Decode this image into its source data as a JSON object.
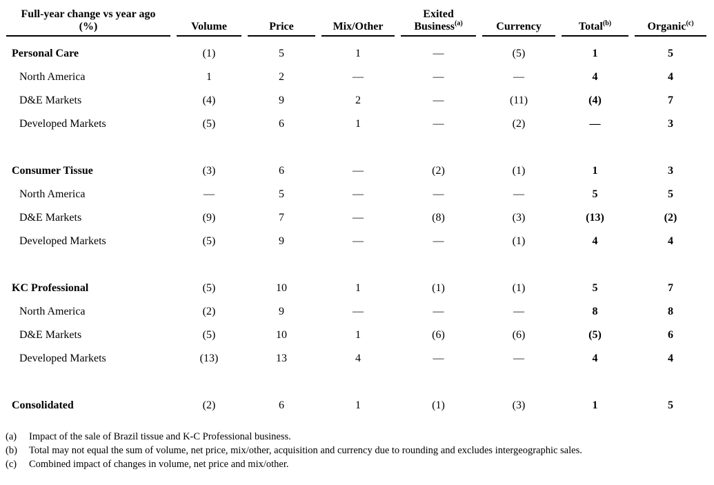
{
  "header": {
    "row_label_line1": "Full-year change vs year ago",
    "row_label_line2": "(%)",
    "columns": [
      {
        "lines": [
          "Volume"
        ],
        "sup": ""
      },
      {
        "lines": [
          "Price"
        ],
        "sup": ""
      },
      {
        "lines": [
          "Mix/Other"
        ],
        "sup": ""
      },
      {
        "lines": [
          "Exited",
          "Business"
        ],
        "sup": "(a)"
      },
      {
        "lines": [
          "Currency"
        ],
        "sup": ""
      },
      {
        "lines": [
          "Total"
        ],
        "sup": "(b)"
      },
      {
        "lines": [
          "Organic"
        ],
        "sup": "(c)"
      }
    ]
  },
  "sections": [
    {
      "rows": [
        {
          "label": "Personal Care",
          "style": "section",
          "values": [
            "(1)",
            "5",
            "1",
            "—",
            "(5)",
            "1",
            "5"
          ]
        },
        {
          "label": "North America",
          "style": "sub",
          "values": [
            "1",
            "2",
            "—",
            "—",
            "—",
            "4",
            "4"
          ]
        },
        {
          "label": "D&E Markets",
          "style": "sub",
          "values": [
            "(4)",
            "9",
            "2",
            "—",
            "(11)",
            "(4)",
            "7"
          ]
        },
        {
          "label": "Developed Markets",
          "style": "sub",
          "values": [
            "(5)",
            "6",
            "1",
            "—",
            "(2)",
            "—",
            "3"
          ]
        }
      ]
    },
    {
      "rows": [
        {
          "label": "Consumer Tissue",
          "style": "section",
          "values": [
            "(3)",
            "6",
            "—",
            "(2)",
            "(1)",
            "1",
            "3"
          ]
        },
        {
          "label": "North America",
          "style": "sub",
          "values": [
            "—",
            "5",
            "—",
            "—",
            "—",
            "5",
            "5"
          ]
        },
        {
          "label": "D&E Markets",
          "style": "sub",
          "values": [
            "(9)",
            "7",
            "—",
            "(8)",
            "(3)",
            "(13)",
            "(2)"
          ]
        },
        {
          "label": "Developed Markets",
          "style": "sub",
          "values": [
            "(5)",
            "9",
            "—",
            "—",
            "(1)",
            "4",
            "4"
          ]
        }
      ]
    },
    {
      "rows": [
        {
          "label": "KC Professional",
          "style": "section",
          "values": [
            "(5)",
            "10",
            "1",
            "(1)",
            "(1)",
            "5",
            "7"
          ]
        },
        {
          "label": "North America",
          "style": "sub",
          "values": [
            "(2)",
            "9",
            "—",
            "—",
            "—",
            "8",
            "8"
          ]
        },
        {
          "label": "D&E Markets",
          "style": "sub",
          "values": [
            "(5)",
            "10",
            "1",
            "(6)",
            "(6)",
            "(5)",
            "6"
          ]
        },
        {
          "label": "Developed Markets",
          "style": "sub",
          "values": [
            "(13)",
            "13",
            "4",
            "—",
            "—",
            "4",
            "4"
          ]
        }
      ]
    },
    {
      "rows": [
        {
          "label": "Consolidated",
          "style": "section",
          "values": [
            "(2)",
            "6",
            "1",
            "(1)",
            "(3)",
            "1",
            "5"
          ]
        }
      ]
    }
  ],
  "footnotes": [
    {
      "marker": "(a)",
      "text": "Impact of the sale of Brazil tissue and K-C Professional business."
    },
    {
      "marker": "(b)",
      "text": "Total may not equal the sum of volume, net price, mix/other, acquisition and currency due to rounding and excludes intergeographic sales."
    },
    {
      "marker": "(c)",
      "text": "Combined impact of changes in volume, net price and mix/other."
    }
  ]
}
